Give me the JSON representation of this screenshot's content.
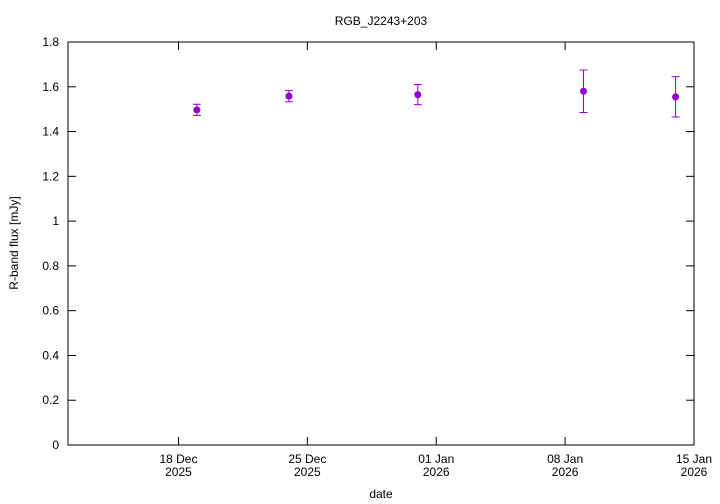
{
  "chart_data": {
    "type": "scatter",
    "title": "RGB_J2243+203",
    "x_label": "date",
    "y_label": "R-band flux [mJy]",
    "series": [
      {
        "color": "#9400d3",
        "x": [
          "2025-12-19",
          "2025-12-24",
          "2025-12-31",
          "2026-01-09",
          "2026-01-14"
        ],
        "values": [
          1.497,
          1.558,
          1.565,
          1.58,
          1.555
        ],
        "errors": [
          0.025,
          0.025,
          0.045,
          0.095,
          0.09
        ]
      }
    ],
    "xlim": [
      "2025-12-12",
      "2026-01-15"
    ],
    "xticks": [
      {
        "value": "2025-12-18",
        "label": "18 Dec\n2025"
      },
      {
        "value": "2025-12-25",
        "label": "25 Dec\n2025"
      },
      {
        "value": "2026-01-01",
        "label": "01 Jan\n2026"
      },
      {
        "value": "2026-01-08",
        "label": "08 Jan\n2026"
      },
      {
        "value": "2026-01-15",
        "label": "15 Jan\n2026"
      }
    ],
    "ylim": [
      0,
      1.8
    ],
    "yticks": [
      0,
      0.2,
      0.4,
      0.6,
      0.8,
      1,
      1.2,
      1.4,
      1.6,
      1.8
    ],
    "grid": false
  }
}
